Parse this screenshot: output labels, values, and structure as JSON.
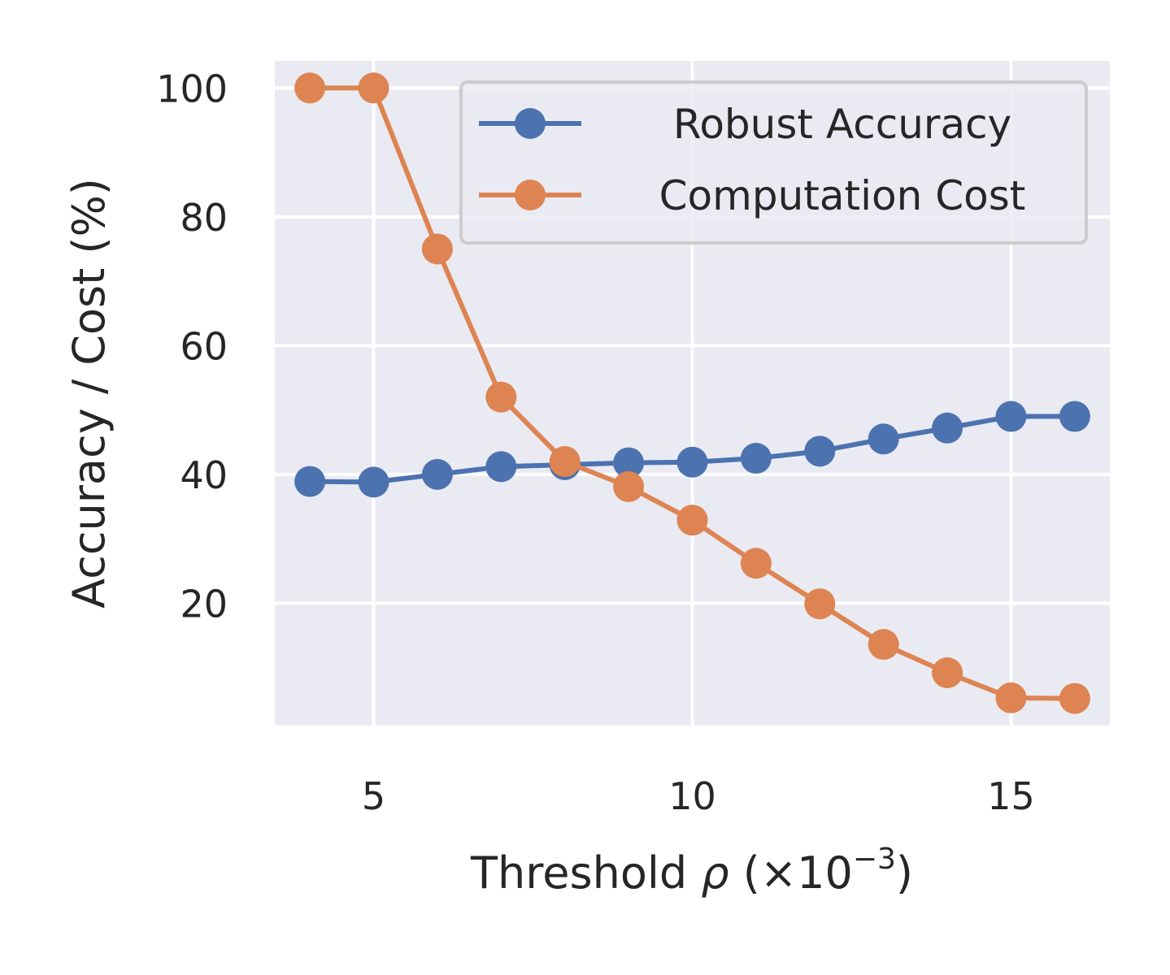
{
  "chart_data": {
    "type": "line",
    "x": [
      4,
      5,
      6,
      7,
      8,
      9,
      10,
      11,
      12,
      13,
      14,
      15,
      16
    ],
    "series": [
      {
        "name": "Robust Accuracy",
        "color": "#4c72b0",
        "marker": "circle",
        "values": [
          38.9,
          38.8,
          40.0,
          41.2,
          41.5,
          41.8,
          41.9,
          42.5,
          43.6,
          45.5,
          47.2,
          49.0,
          49.0
        ]
      },
      {
        "name": "Computation Cost",
        "color": "#dd8452",
        "marker": "circle",
        "values": [
          100.0,
          100.0,
          75.0,
          52.0,
          42.0,
          38.1,
          32.9,
          26.2,
          19.9,
          13.6,
          9.2,
          5.3,
          5.2
        ]
      }
    ],
    "xlabel": {
      "prefix": "Threshold ",
      "symbol": "ρ",
      "middle": " (×10",
      "exponent": "−3",
      "suffix": ")"
    },
    "ylabel": "Accuracy / Cost (%)",
    "xlim": [
      3.45,
      16.55
    ],
    "ylim": [
      1.0,
      104.2
    ],
    "xticks": [
      5,
      10,
      15
    ],
    "yticks": [
      20,
      40,
      60,
      80,
      100
    ],
    "grid": true,
    "background": "#eaeaf2",
    "legend_position": "top-right"
  }
}
